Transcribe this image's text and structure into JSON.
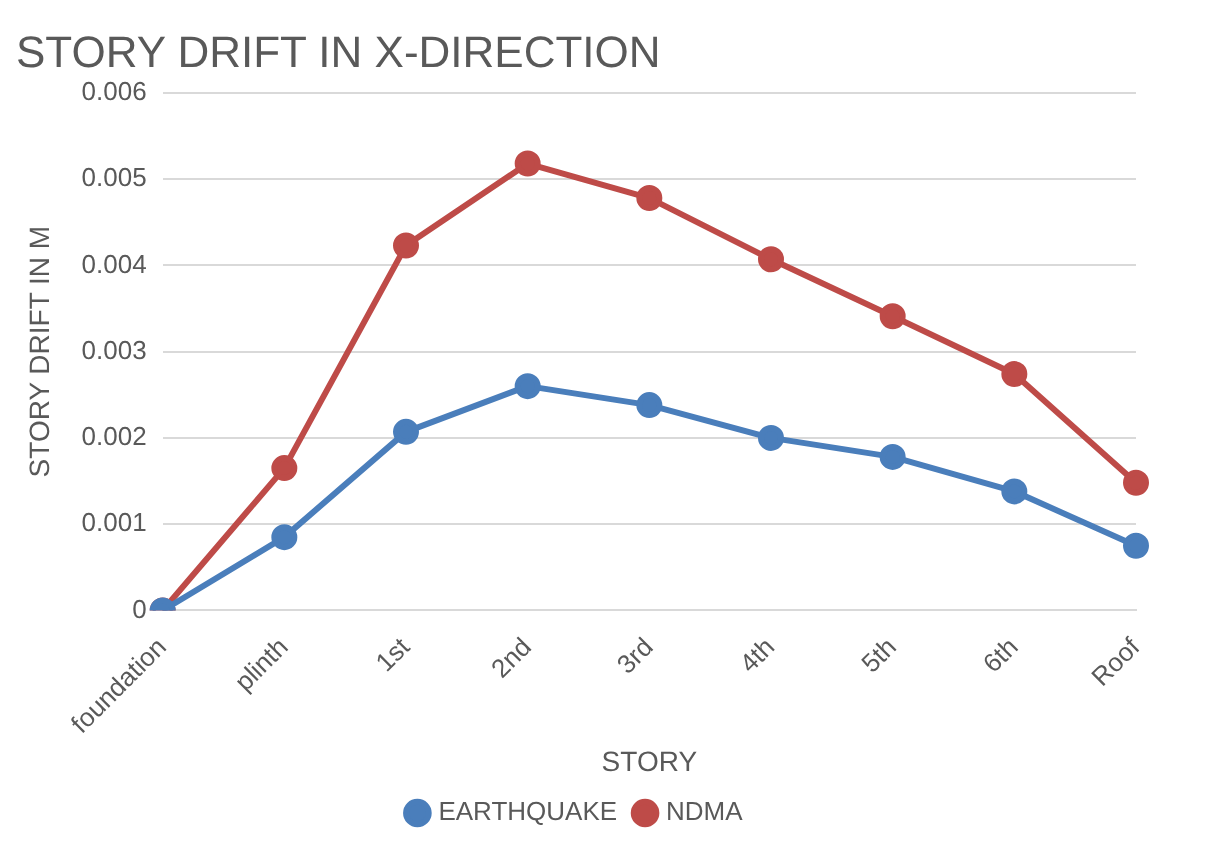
{
  "chart_data": {
    "type": "line",
    "title": "STORY DRIFT IN X-DIRECTION",
    "xlabel": "STORY",
    "ylabel": "STORY DRIFT IN M",
    "categories": [
      "foundation",
      "plinth",
      "1st",
      "2nd",
      "3rd",
      "4th",
      "5th",
      "6th",
      "Roof"
    ],
    "series": [
      {
        "name": "EARTHQUAKE",
        "color": "#4a7ebb",
        "values": [
          0,
          0.00085,
          0.00207,
          0.0026,
          0.00238,
          0.002,
          0.00178,
          0.00138,
          0.00075
        ]
      },
      {
        "name": "NDMA",
        "color": "#be4b48",
        "values": [
          0,
          0.00165,
          0.00423,
          0.00518,
          0.00478,
          0.00407,
          0.00341,
          0.00274,
          0.00148
        ]
      }
    ],
    "ylim": [
      0,
      0.006
    ],
    "yticks": [
      0,
      0.001,
      0.002,
      0.003,
      0.004,
      0.005,
      0.006
    ],
    "grid": "y",
    "legend": "bottom",
    "marker": "circle",
    "line_style": "solid"
  }
}
